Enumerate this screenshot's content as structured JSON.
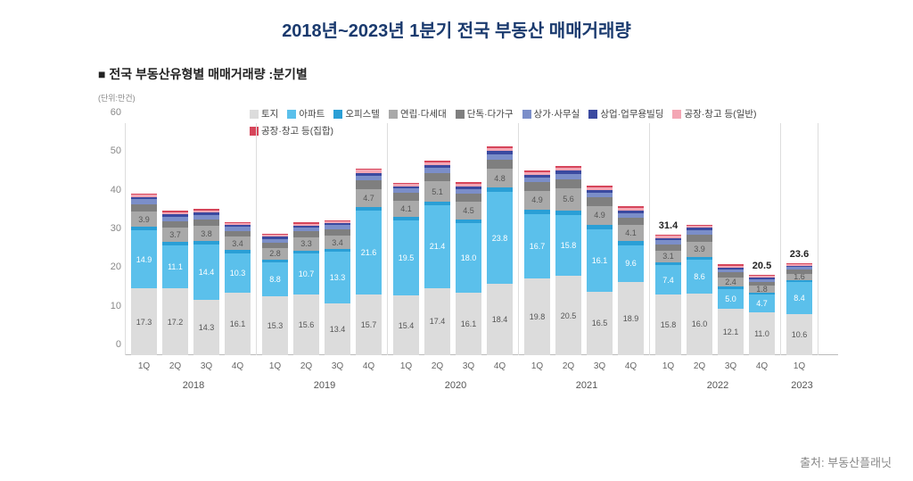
{
  "title": "2018년~2023년 1분기 전국 부동산 매매거래량",
  "subtitle": "■ 전국 부동산유형별 매매거래량 :분기별",
  "unit_label": "(단위:만건)",
  "source": "출처: 부동산플래닛",
  "chart": {
    "type": "stacked-bar",
    "ylim": [
      0,
      60
    ],
    "ytick_step": 10,
    "yticks": [
      "0",
      "10",
      "20",
      "30",
      "40",
      "50",
      "60"
    ],
    "background_color": "#ffffff",
    "title_fontsize": 20,
    "subtitle_fontsize": 14,
    "legend": [
      {
        "label": "토지",
        "color": "#dcdcdc"
      },
      {
        "label": "아파트",
        "color": "#5bc0eb"
      },
      {
        "label": "오피스텔",
        "color": "#2a9fd6"
      },
      {
        "label": "연립·다세대",
        "color": "#a9a9a9"
      },
      {
        "label": "단독·다가구",
        "color": "#7f7f7f"
      },
      {
        "label": "상가·사무실",
        "color": "#7b8ec9"
      },
      {
        "label": "상업·업무용빌딩",
        "color": "#3b4aa0"
      },
      {
        "label": "공장·창고 등(일반)",
        "color": "#f4a6b4"
      },
      {
        "label": "공장·창고 등(집합)",
        "color": "#d6455a"
      }
    ],
    "years": [
      {
        "year": "2018",
        "quarters": [
          {
            "q": "1Q",
            "segs": [
              17.3,
              14.9,
              1.0,
              3.9,
              2.0,
              1.2,
              0.6,
              0.6,
              0.3
            ],
            "labels": {
              "0": "17.3",
              "1": "14.9",
              "3": "3.9"
            }
          },
          {
            "q": "2Q",
            "segs": [
              17.2,
              11.1,
              0.9,
              3.7,
              1.8,
              1.1,
              0.6,
              0.6,
              0.3
            ],
            "labels": {
              "0": "17.2",
              "1": "11.1",
              "3": "3.7"
            }
          },
          {
            "q": "3Q",
            "segs": [
              14.3,
              14.4,
              0.9,
              3.8,
              1.8,
              1.1,
              0.6,
              0.6,
              0.3
            ],
            "labels": {
              "0": "14.3",
              "1": "14.4",
              "3": "3.8"
            }
          },
          {
            "q": "4Q",
            "segs": [
              16.1,
              10.3,
              0.8,
              3.4,
              1.6,
              1.0,
              0.5,
              0.5,
              0.3
            ],
            "labels": {
              "0": "16.1",
              "1": "10.3",
              "3": "3.4"
            }
          }
        ]
      },
      {
        "year": "2019",
        "quarters": [
          {
            "q": "1Q",
            "segs": [
              15.3,
              8.8,
              0.7,
              2.8,
              1.5,
              1.0,
              0.5,
              0.5,
              0.3
            ],
            "labels": {
              "0": "15.3",
              "1": "8.8",
              "3": "2.8"
            }
          },
          {
            "q": "2Q",
            "segs": [
              15.6,
              10.7,
              0.8,
              3.3,
              1.6,
              1.0,
              0.5,
              0.5,
              0.3
            ],
            "labels": {
              "0": "15.6",
              "1": "10.7",
              "3": "3.3"
            }
          },
          {
            "q": "3Q",
            "segs": [
              13.4,
              13.3,
              0.8,
              3.4,
              1.7,
              1.0,
              0.5,
              0.5,
              0.3
            ],
            "labels": {
              "0": "13.4",
              "1": "13.3",
              "3": "3.4"
            }
          },
          {
            "q": "4Q",
            "segs": [
              15.7,
              21.6,
              1.0,
              4.7,
              2.2,
              1.3,
              0.7,
              0.7,
              0.4
            ],
            "labels": {
              "0": "15.7",
              "1": "21.6",
              "3": "4.7"
            }
          }
        ]
      },
      {
        "year": "2020",
        "quarters": [
          {
            "q": "1Q",
            "segs": [
              15.4,
              19.5,
              0.9,
              4.1,
              2.0,
              1.2,
              0.6,
              0.6,
              0.3
            ],
            "labels": {
              "0": "15.4",
              "1": "19.5",
              "3": "4.1"
            }
          },
          {
            "q": "2Q",
            "segs": [
              17.4,
              21.4,
              1.0,
              5.1,
              2.3,
              1.3,
              0.7,
              0.7,
              0.4
            ],
            "labels": {
              "0": "17.4",
              "1": "21.4",
              "3": "5.1"
            }
          },
          {
            "q": "3Q",
            "segs": [
              16.1,
              18.0,
              1.0,
              4.5,
              2.1,
              1.2,
              0.7,
              0.7,
              0.4
            ],
            "labels": {
              "0": "16.1",
              "1": "18.0",
              "3": "4.5"
            }
          },
          {
            "q": "4Q",
            "segs": [
              18.4,
              23.8,
              1.2,
              4.8,
              2.4,
              1.4,
              0.8,
              0.8,
              0.4
            ],
            "labels": {
              "0": "18.4",
              "1": "23.8",
              "3": "4.8"
            }
          }
        ]
      },
      {
        "year": "2021",
        "quarters": [
          {
            "q": "1Q",
            "segs": [
              19.8,
              16.7,
              1.1,
              4.9,
              2.2,
              1.3,
              0.7,
              0.7,
              0.4
            ],
            "labels": {
              "0": "19.8",
              "1": "16.7",
              "3": "4.9"
            }
          },
          {
            "q": "2Q",
            "segs": [
              20.5,
              15.8,
              1.2,
              5.6,
              2.4,
              1.4,
              0.8,
              0.8,
              0.4
            ],
            "labels": {
              "0": "20.5",
              "1": "15.8",
              "3": "5.6"
            }
          },
          {
            "q": "3Q",
            "segs": [
              16.5,
              16.1,
              1.1,
              4.9,
              2.2,
              1.3,
              0.7,
              0.7,
              0.4
            ],
            "labels": {
              "0": "16.5",
              "1": "16.1",
              "3": "4.9"
            }
          },
          {
            "q": "4Q",
            "segs": [
              18.9,
              9.6,
              1.0,
              4.1,
              2.0,
              1.2,
              0.7,
              0.7,
              0.4
            ],
            "labels": {
              "0": "18.9",
              "1": "9.6",
              "3": "4.1"
            }
          }
        ]
      },
      {
        "year": "2022",
        "quarters": [
          {
            "q": "1Q",
            "segs": [
              15.8,
              7.4,
              0.8,
              3.1,
              1.6,
              1.0,
              0.6,
              0.6,
              0.3
            ],
            "labels": {
              "0": "15.8",
              "1": "7.4",
              "3": "3.1"
            },
            "total": "31.4"
          },
          {
            "q": "2Q",
            "segs": [
              16.0,
              8.6,
              0.9,
              3.9,
              1.8,
              1.1,
              0.6,
              0.6,
              0.3
            ],
            "labels": {
              "0": "16.0",
              "1": "8.6",
              "3": "3.9"
            }
          },
          {
            "q": "3Q",
            "segs": [
              12.1,
              5.0,
              0.6,
              2.4,
              1.3,
              0.8,
              0.5,
              0.5,
              0.3
            ],
            "labels": {
              "0": "12.1",
              "1": "5.0",
              "3": "2.4"
            }
          },
          {
            "q": "4Q",
            "segs": [
              11.0,
              4.7,
              0.5,
              1.8,
              1.0,
              0.7,
              0.4,
              0.4,
              0.2
            ],
            "labels": {
              "0": "11.0",
              "1": "4.7",
              "3": "1.8"
            },
            "total": "20.5"
          }
        ]
      },
      {
        "year": "2023",
        "quarters": [
          {
            "q": "1Q",
            "segs": [
              10.6,
              8.4,
              0.5,
              1.6,
              1.0,
              0.7,
              0.4,
              0.4,
              0.2
            ],
            "labels": {
              "0": "10.6",
              "1": "8.4",
              "3": "1.6"
            },
            "total": "23.6"
          }
        ]
      }
    ]
  }
}
